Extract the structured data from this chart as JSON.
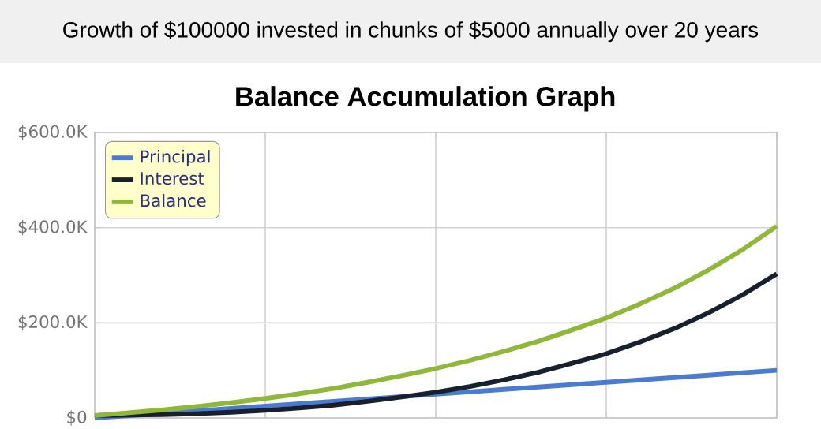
{
  "chart_data": {
    "type": "line",
    "title": "Growth of $100000 invested in chunks of $5000 annually over 20 years",
    "subtitle": "Balance Accumulation Graph",
    "categories": [
      null,
      null,
      null,
      null,
      null,
      null,
      null,
      null,
      null,
      null,
      null,
      null,
      null,
      null,
      null,
      null,
      null,
      null,
      null,
      null,
      null
    ],
    "series": [
      {
        "name": "Principal",
        "color": "#4a7bd0",
        "values": [
          0,
          5000,
          10000,
          15000,
          20000,
          25000,
          30000,
          35000,
          40000,
          45000,
          50000,
          55000,
          60000,
          65000,
          70000,
          75000,
          80000,
          85000,
          90000,
          95000,
          100000
        ]
      },
      {
        "name": "Interest",
        "color": "#18202e",
        "values": [
          5000,
          6000,
          7000,
          9000,
          12000,
          16000,
          21000,
          27000,
          35000,
          44000,
          54000,
          66000,
          80000,
          96000,
          115000,
          135000,
          160000,
          188000,
          221000,
          259000,
          303000
        ]
      },
      {
        "name": "Balance",
        "color": "#8fb83a",
        "values": [
          5000,
          11000,
          17000,
          24000,
          32000,
          41000,
          51000,
          62000,
          75000,
          89000,
          104000,
          121000,
          140000,
          161000,
          185000,
          210000,
          240000,
          273000,
          311000,
          354000,
          403000
        ]
      }
    ],
    "ylim": [
      0,
      600000
    ],
    "yticks": [
      {
        "value": 0,
        "label": "$0"
      },
      {
        "value": 200000,
        "label": "$200.0K"
      },
      {
        "value": 400000,
        "label": "$400.0K"
      },
      {
        "value": 600000,
        "label": "$600.0K"
      }
    ],
    "tick_labels": "y",
    "grid": true,
    "legend": "top left",
    "line_style": "solid"
  }
}
